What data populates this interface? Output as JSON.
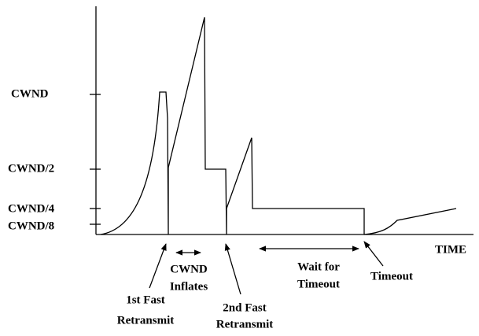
{
  "axis": {
    "y_labels": [
      "CWND",
      "CWND/2",
      "CWND/4",
      "CWND/8"
    ],
    "x_label": "TIME"
  },
  "annotations": [
    {
      "lines": [
        "1st Fast",
        "Retransmit"
      ]
    },
    {
      "lines": [
        "CWND",
        "Inflates"
      ]
    },
    {
      "lines": [
        "2nd Fast",
        "Retransmit"
      ]
    },
    {
      "lines": [
        "Wait for",
        "Timeout"
      ]
    },
    {
      "lines": [
        "Timeout"
      ]
    }
  ]
}
